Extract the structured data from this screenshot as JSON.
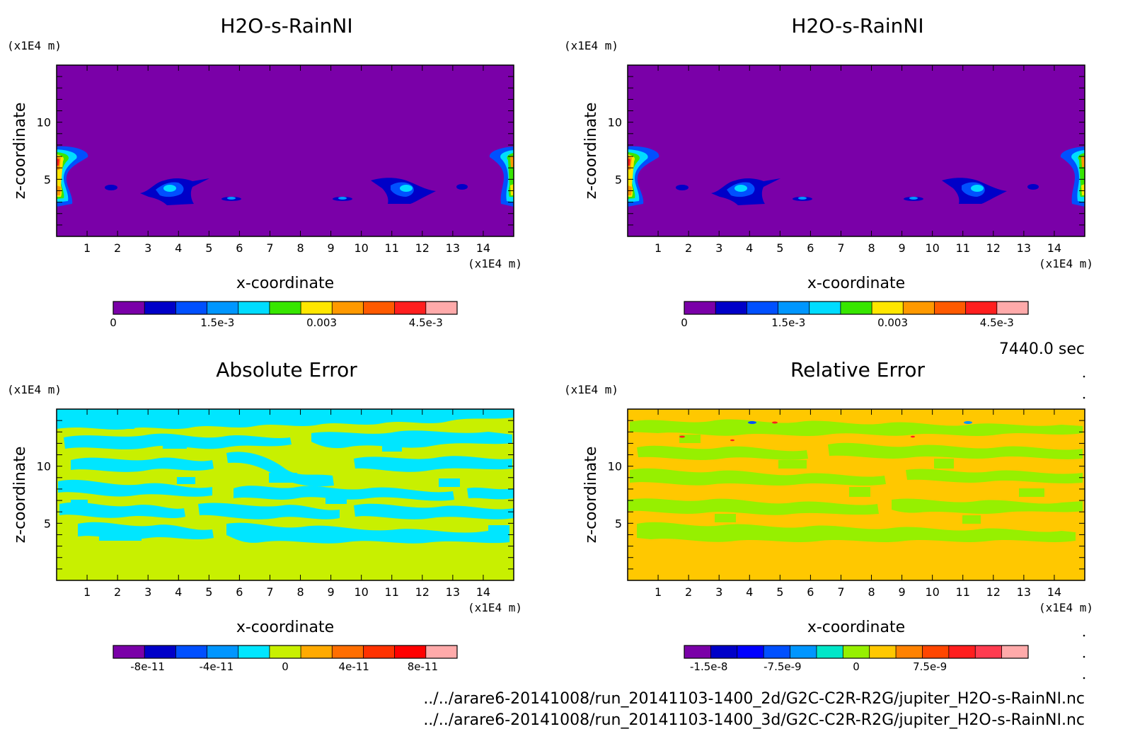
{
  "chart_data": [
    {
      "type": "heatmap",
      "title": "H2O-s-RainNI",
      "xlabel": "x-coordinate",
      "ylabel": "z-coordinate",
      "x_unit": "(x1E4 m)",
      "y_unit": "(x1E4 m)",
      "xlim": [
        0,
        15
      ],
      "ylim": [
        0,
        15
      ],
      "x_ticks": [
        "1",
        "2",
        "3",
        "4",
        "5",
        "6",
        "7",
        "8",
        "9",
        "10",
        "11",
        "12",
        "13",
        "14"
      ],
      "y_ticks": [
        "5",
        "10"
      ],
      "colorbar": {
        "labels": [
          "0",
          "1.5e-3",
          "0.003",
          "4.5e-3"
        ],
        "label_values": [
          0,
          0.0015,
          0.003,
          0.0045
        ],
        "range": [
          0,
          0.00495
        ],
        "colors": [
          "#7a00a8",
          "#0000c8",
          "#0050ff",
          "#0096ff",
          "#00dcff",
          "#37e600",
          "#ffe600",
          "#ff9900",
          "#ff5a00",
          "#ff1e1e",
          "#ffaaaa"
        ]
      }
    },
    {
      "type": "heatmap",
      "title": "H2O-s-RainNI",
      "xlabel": "x-coordinate",
      "ylabel": "z-coordinate",
      "x_unit": "(x1E4 m)",
      "y_unit": "(x1E4 m)",
      "xlim": [
        0,
        15
      ],
      "ylim": [
        0,
        15
      ],
      "x_ticks": [
        "1",
        "2",
        "3",
        "4",
        "5",
        "6",
        "7",
        "8",
        "9",
        "10",
        "11",
        "12",
        "13",
        "14"
      ],
      "y_ticks": [
        "5",
        "10"
      ],
      "colorbar": {
        "labels": [
          "0",
          "1.5e-3",
          "0.003",
          "4.5e-3"
        ],
        "label_values": [
          0,
          0.0015,
          0.003,
          0.0045
        ],
        "range": [
          0,
          0.00495
        ],
        "colors": [
          "#7a00a8",
          "#0000c8",
          "#0050ff",
          "#0096ff",
          "#00dcff",
          "#37e600",
          "#ffe600",
          "#ff9900",
          "#ff5a00",
          "#ff1e1e",
          "#ffaaaa"
        ]
      }
    },
    {
      "type": "heatmap",
      "title": "Absolute Error",
      "xlabel": "x-coordinate",
      "ylabel": "z-coordinate",
      "x_unit": "(x1E4 m)",
      "y_unit": "(x1E4 m)",
      "xlim": [
        0,
        15
      ],
      "ylim": [
        0,
        15
      ],
      "x_ticks": [
        "1",
        "2",
        "3",
        "4",
        "5",
        "6",
        "7",
        "8",
        "9",
        "10",
        "11",
        "12",
        "13",
        "14"
      ],
      "y_ticks": [
        "5",
        "10"
      ],
      "colorbar": {
        "labels": [
          "-8e-11",
          "-4e-11",
          "0",
          "4e-11",
          "8e-11"
        ],
        "label_values": [
          -8e-11,
          -4e-11,
          0,
          4e-11,
          8e-11
        ],
        "range": [
          -1e-10,
          1e-10
        ],
        "colors": [
          "#7a00a8",
          "#0000c8",
          "#0050ff",
          "#0096ff",
          "#00e6ff",
          "#c8f000",
          "#ffaa00",
          "#ff6e00",
          "#ff3200",
          "#ff0000",
          "#ffaaaa"
        ]
      }
    },
    {
      "type": "heatmap",
      "title": "Relative Error",
      "xlabel": "x-coordinate",
      "ylabel": "z-coordinate",
      "x_unit": "(x1E4 m)",
      "y_unit": "(x1E4 m)",
      "xlim": [
        0,
        15
      ],
      "ylim": [
        0,
        15
      ],
      "x_ticks": [
        "1",
        "2",
        "3",
        "4",
        "5",
        "6",
        "7",
        "8",
        "9",
        "10",
        "11",
        "12",
        "13",
        "14"
      ],
      "y_ticks": [
        "5",
        "10"
      ],
      "colorbar": {
        "labels": [
          "-1.5e-8",
          "-7.5e-9",
          "0",
          "7.5e-9"
        ],
        "label_values": [
          -1.5e-08,
          -7.5e-09,
          0,
          7.5e-09
        ],
        "range": [
          -1.75e-08,
          1.75e-08
        ],
        "colors": [
          "#7a00a8",
          "#0000c8",
          "#0000ff",
          "#0050ff",
          "#0096ff",
          "#00e6c8",
          "#96f000",
          "#ffc800",
          "#ff8200",
          "#ff4600",
          "#ff1e1e",
          "#ff3c50",
          "#ffaaaa"
        ]
      }
    }
  ],
  "time_label": "7440.0 sec",
  "footer": {
    "path1": "../../arare6-20141008/run_20141103-1400_2d/G2C-C2R-R2G/jupiter_H2O-s-RainNI.nc",
    "path2": "../../arare6-20141008/run_20141103-1400_3d/G2C-C2R-R2G/jupiter_H2O-s-RainNI.nc"
  }
}
